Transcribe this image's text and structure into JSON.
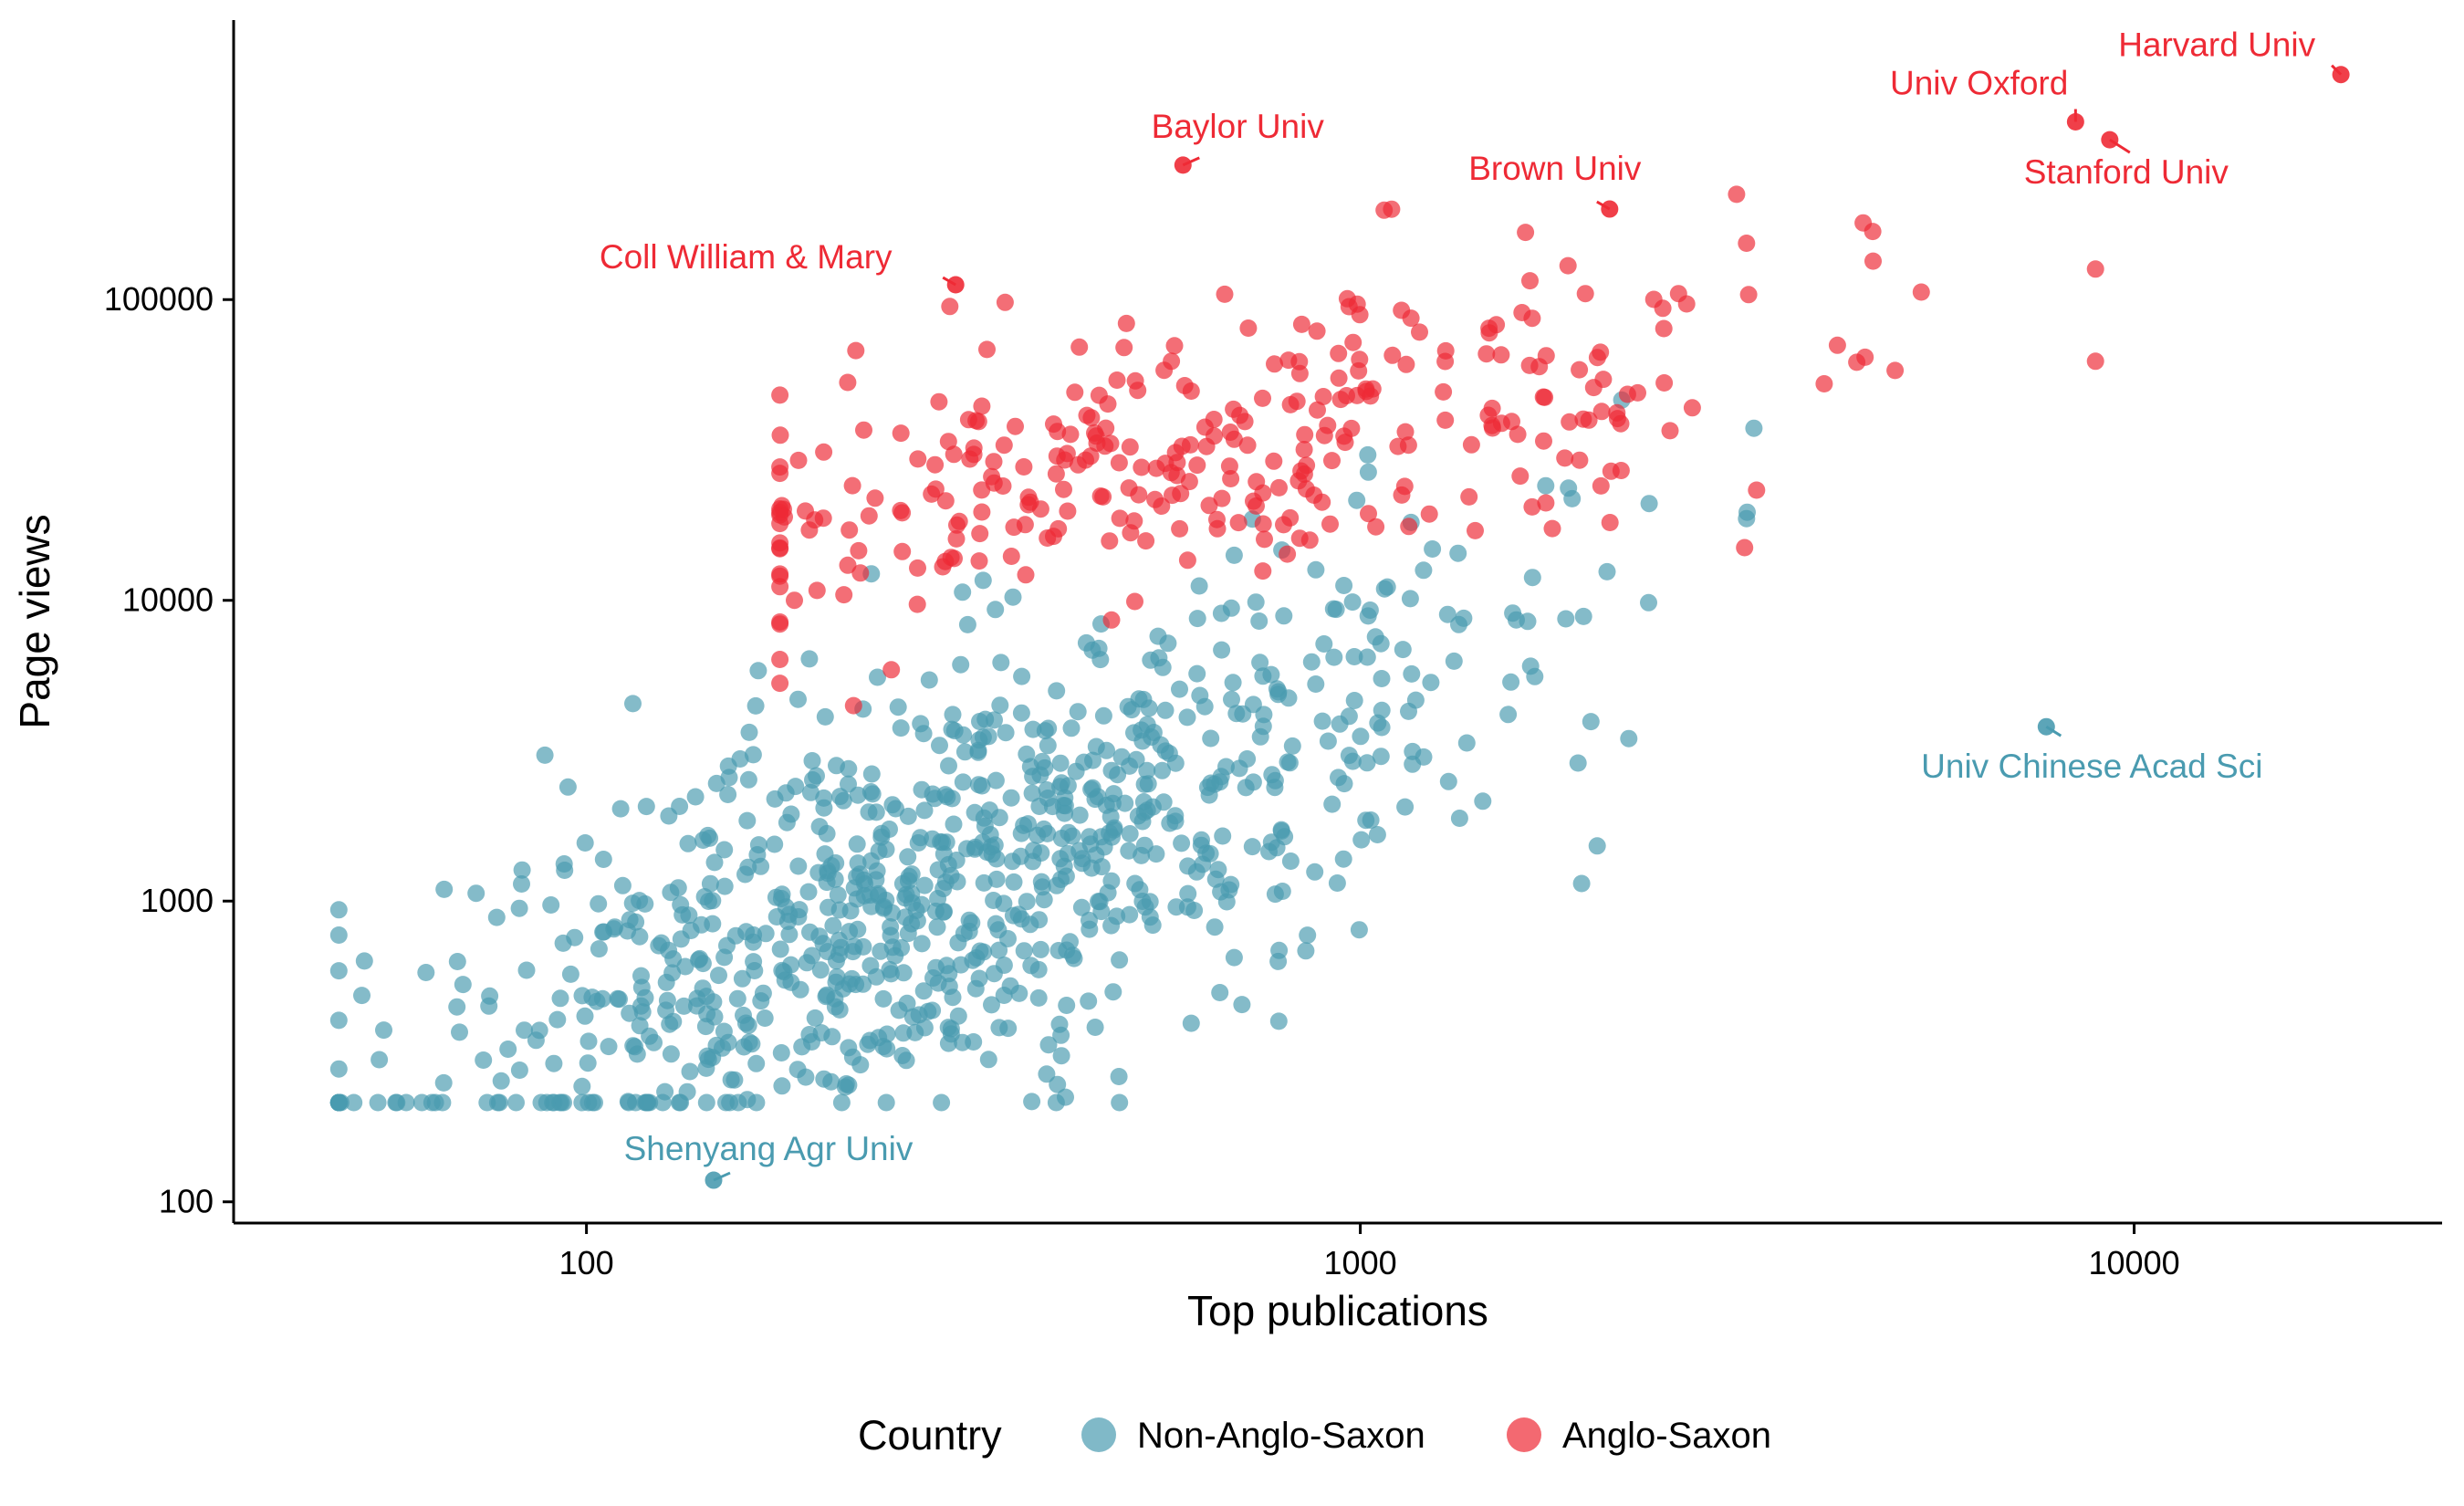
{
  "chart_data": {
    "type": "scatter",
    "xlabel": "Top publications",
    "ylabel": "Page views",
    "x_scale": "log10",
    "y_scale": "log10",
    "xlim": [
      35,
      25000
    ],
    "ylim": [
      85,
      850000
    ],
    "x_ticks": [
      100,
      1000,
      10000
    ],
    "y_ticks": [
      100,
      1000,
      10000,
      100000
    ],
    "x_tick_labels": [
      "100",
      "1000",
      "10000"
    ],
    "y_tick_labels": [
      "100",
      "1000",
      "10000",
      "100000"
    ],
    "grid": false,
    "legend": {
      "title": "Country",
      "placement": "bottom",
      "entries": [
        {
          "label": "Non-Anglo-Saxon",
          "color": "#4a9bb0"
        },
        {
          "label": "Anglo-Saxon",
          "color": "#ee2a35"
        }
      ]
    },
    "series": [
      {
        "name": "Non-Anglo-Saxon",
        "color": "#4a9bb0",
        "point_count_approx": 900
      },
      {
        "name": "Anglo-Saxon",
        "color": "#ee2a35",
        "point_count_approx": 330
      }
    ],
    "highlighted_points": [
      {
        "label": "Harvard Univ",
        "x": 18500,
        "y": 560000,
        "group": "Anglo-Saxon"
      },
      {
        "label": "Univ Oxford",
        "x": 8400,
        "y": 390000,
        "group": "Anglo-Saxon"
      },
      {
        "label": "Stanford Univ",
        "x": 9300,
        "y": 340000,
        "group": "Anglo-Saxon"
      },
      {
        "label": "Baylor Univ",
        "x": 590,
        "y": 280000,
        "group": "Anglo-Saxon"
      },
      {
        "label": "Brown Univ",
        "x": 2100,
        "y": 200000,
        "group": "Anglo-Saxon"
      },
      {
        "label": "Coll William & Mary",
        "x": 300,
        "y": 112000,
        "group": "Anglo-Saxon"
      },
      {
        "label": "Univ Chinese Acad Sci",
        "x": 7700,
        "y": 3800,
        "group": "Non-Anglo-Saxon"
      },
      {
        "label": "Shenyang Agr Univ",
        "x": 146,
        "y": 118,
        "group": "Non-Anglo-Saxon"
      }
    ]
  }
}
